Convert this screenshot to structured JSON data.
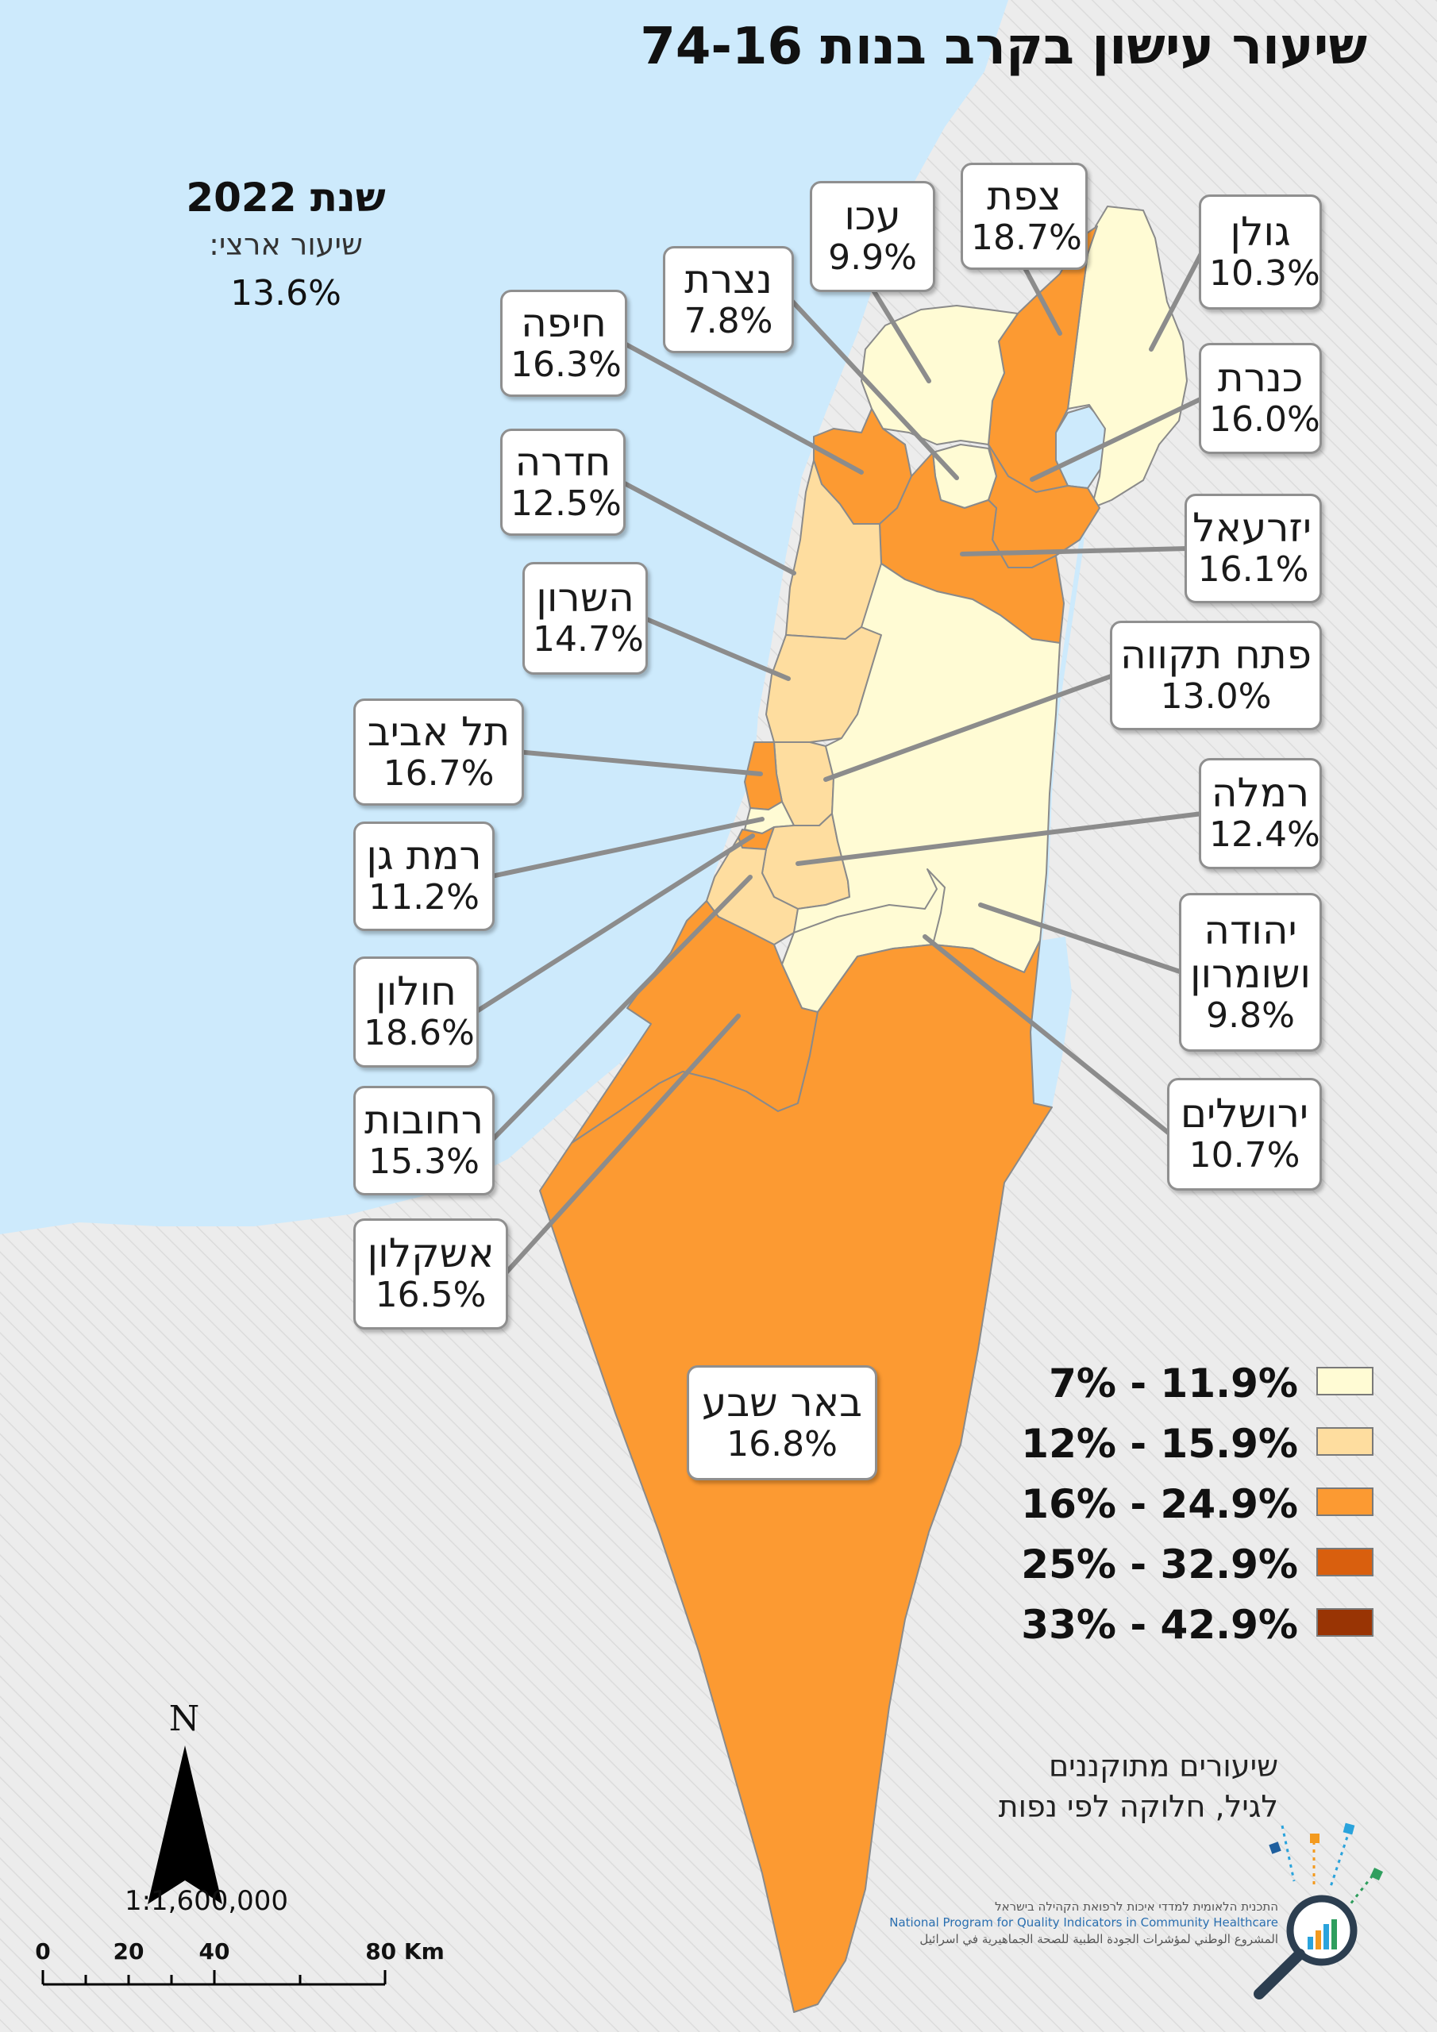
{
  "title": "שיעור עישון בקרב בנות 74-16",
  "year_label": "שנת 2022",
  "national_rate_label": "שיעור ארצי:",
  "national_rate_value": "13.6%",
  "regions": [
    {
      "id": "golan",
      "name": "גולן",
      "value": "10.3%",
      "rate": 10.3,
      "color": "#fffbd4"
    },
    {
      "id": "safed",
      "name": "צפת",
      "value": "18.7%",
      "rate": 18.7,
      "color": "#fc9a32"
    },
    {
      "id": "akko",
      "name": "עכו",
      "value": "9.9%",
      "rate": 9.9,
      "color": "#fffbd4"
    },
    {
      "id": "nazareth",
      "name": "נצרת",
      "value": "7.8%",
      "rate": 7.8,
      "color": "#fffbd4"
    },
    {
      "id": "haifa",
      "name": "חיפה",
      "value": "16.3%",
      "rate": 16.3,
      "color": "#fc9a32"
    },
    {
      "id": "kinneret",
      "name": "כנרת",
      "value": "16.0%",
      "rate": 16.0,
      "color": "#fc9a32"
    },
    {
      "id": "hadera",
      "name": "חדרה",
      "value": "12.5%",
      "rate": 12.5,
      "color": "#fedd9f"
    },
    {
      "id": "jezreel",
      "name": "יזרעאל",
      "value": "16.1%",
      "rate": 16.1,
      "color": "#fc9a32"
    },
    {
      "id": "sharon",
      "name": "השרון",
      "value": "14.7%",
      "rate": 14.7,
      "color": "#fedd9f"
    },
    {
      "id": "petah_tikva",
      "name": "פתח תקווה",
      "value": "13.0%",
      "rate": 13.0,
      "color": "#fedd9f"
    },
    {
      "id": "tel_aviv",
      "name": "תל אביב",
      "value": "16.7%",
      "rate": 16.7,
      "color": "#fc9a32"
    },
    {
      "id": "ramla",
      "name": "רמלה",
      "value": "12.4%",
      "rate": 12.4,
      "color": "#fedd9f"
    },
    {
      "id": "ramat_gan",
      "name": "רמת גן",
      "value": "11.2%",
      "rate": 11.2,
      "color": "#fffbd4"
    },
    {
      "id": "judea_samaria",
      "name": "יהודה ושומרון",
      "value": "9.8%",
      "rate": 9.8,
      "color": "#fffbd4"
    },
    {
      "id": "holon",
      "name": "חולון",
      "value": "18.6%",
      "rate": 18.6,
      "color": "#fc9a32"
    },
    {
      "id": "jerusalem",
      "name": "ירושלים",
      "value": "10.7%",
      "rate": 10.7,
      "color": "#fffbd4"
    },
    {
      "id": "rehovot",
      "name": "רחובות",
      "value": "15.3%",
      "rate": 15.3,
      "color": "#fedd9f"
    },
    {
      "id": "ashkelon",
      "name": "אשקלון",
      "value": "16.5%",
      "rate": 16.5,
      "color": "#fc9a32"
    },
    {
      "id": "beer_sheva",
      "name": "באר שבע",
      "value": "16.8%",
      "rate": 16.8,
      "color": "#fc9a32"
    }
  ],
  "legend": [
    {
      "label": "7% - 11.9%",
      "color": "#fffbd4"
    },
    {
      "label": "12% - 15.9%",
      "color": "#fedd9f"
    },
    {
      "label": "16% - 24.9%",
      "color": "#fc9a32"
    },
    {
      "label": "25% - 32.9%",
      "color": "#d95f0e"
    },
    {
      "label": "33% - 42.9%",
      "color": "#993404"
    }
  ],
  "note_line1": "שיעורים מתוקננים",
  "note_line2": "לגיל, חלוקה לפי נפות",
  "north_label": "N",
  "scale_ratio": "1:1,600,000",
  "scale_labels": [
    "0",
    "20",
    "40",
    "80 Km"
  ],
  "logo_text_he": "התכנית הלאומית למדדי איכות לרפואת הקהילה בישראל",
  "logo_text_en": "National Program for Quality Indicators in Community Healthcare",
  "logo_text_ar": "المشروع الوطني لمؤشرات الجودة الطبية للصحة الجماهيرية في اسرائيل",
  "colors": {
    "sea": "#cdeafc",
    "land_outside": "#ececec",
    "border": "#8a8a8a"
  }
}
